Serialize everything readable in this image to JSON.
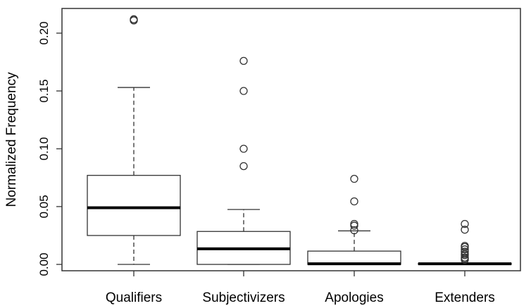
{
  "chart_data": {
    "type": "boxplot",
    "title": "",
    "xlabel": "",
    "ylabel": "Normalized Frequency",
    "ylim": [
      -0.012,
      0.222
    ],
    "yticks": [
      0.0,
      0.05,
      0.1,
      0.15,
      0.2
    ],
    "ytick_labels": [
      "0.00",
      "0.05",
      "0.10",
      "0.15",
      "0.20"
    ],
    "grid": false,
    "categories": [
      "Qualifiers",
      "Subjectivizers",
      "Apologies",
      "Extenders"
    ],
    "boxes": [
      {
        "name": "Qualifiers",
        "whisker_low": 0.0,
        "q1": 0.025,
        "median": 0.049,
        "q3": 0.077,
        "whisker_high": 0.153,
        "outliers": [
          0.211,
          0.212
        ]
      },
      {
        "name": "Subjectivizers",
        "whisker_low": 0.0,
        "q1": 0.0,
        "median": 0.0135,
        "q3": 0.0285,
        "whisker_high": 0.0475,
        "outliers": [
          0.176,
          0.15,
          0.1,
          0.085
        ]
      },
      {
        "name": "Apologies",
        "whisker_low": 0.0,
        "q1": 0.0,
        "median": 0.0005,
        "q3": 0.0115,
        "whisker_high": 0.029,
        "outliers": [
          0.074,
          0.0545,
          0.035,
          0.0335,
          0.0295
        ]
      },
      {
        "name": "Extenders",
        "whisker_low": 0.0,
        "q1": 0.0,
        "median": 0.0005,
        "q3": 0.001,
        "whisker_high": 0.001,
        "outliers": [
          0.035,
          0.03,
          0.016,
          0.015,
          0.013,
          0.011,
          0.009,
          0.008,
          0.006,
          0.005,
          0.004
        ]
      }
    ]
  }
}
